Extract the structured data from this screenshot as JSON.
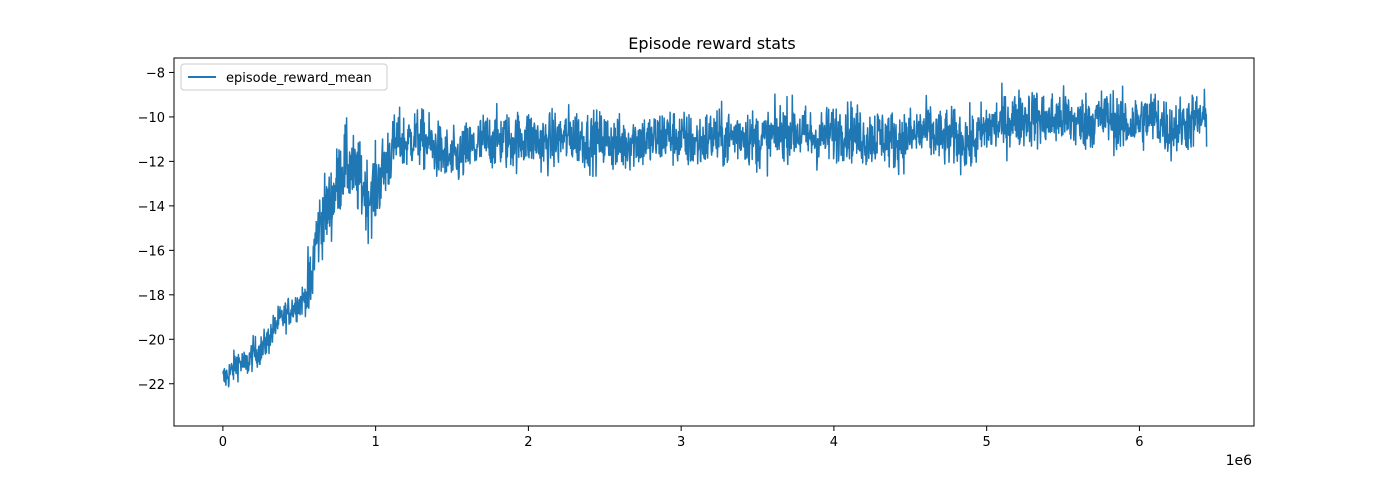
{
  "chart_data": {
    "type": "line",
    "title": "Episode reward stats",
    "xlabel": "",
    "ylabel": "",
    "x_offset_label": "1e6",
    "xlim": [
      -0.32,
      6.75
    ],
    "ylim": [
      -23.9,
      -7.35
    ],
    "x_ticks": [
      0,
      1,
      2,
      3,
      4,
      5,
      6
    ],
    "x_tick_labels": [
      "0",
      "1",
      "2",
      "3",
      "4",
      "5",
      "6"
    ],
    "y_ticks": [
      -22,
      -20,
      -18,
      -16,
      -14,
      -12,
      -10,
      -8
    ],
    "y_tick_labels": [
      "−22",
      "−20",
      "−18",
      "−16",
      "−14",
      "−12",
      "−10",
      "−8"
    ],
    "grid": false,
    "legend_position": "top-left",
    "series": [
      {
        "name": "episode_reward_mean",
        "color": "#1f77b4",
        "x": [
          0.0,
          0.05,
          0.1,
          0.15,
          0.2,
          0.25,
          0.3,
          0.35,
          0.4,
          0.45,
          0.5,
          0.55,
          0.58,
          0.6,
          0.65,
          0.7,
          0.75,
          0.8,
          0.85,
          0.9,
          0.95,
          1.0,
          1.05,
          1.1,
          1.15,
          1.2,
          1.25,
          1.3,
          1.35,
          1.4,
          1.45,
          1.5,
          1.55,
          1.6,
          1.65,
          1.7,
          1.8,
          1.9,
          2.0,
          2.1,
          2.2,
          2.3,
          2.4,
          2.5,
          2.6,
          2.7,
          2.8,
          2.9,
          3.0,
          3.1,
          3.2,
          3.3,
          3.4,
          3.5,
          3.6,
          3.7,
          3.8,
          3.9,
          4.0,
          4.1,
          4.2,
          4.3,
          4.4,
          4.5,
          4.6,
          4.7,
          4.8,
          4.9,
          5.0,
          5.1,
          5.2,
          5.3,
          5.4,
          5.5,
          5.6,
          5.7,
          5.8,
          5.9,
          6.0,
          6.1,
          6.2,
          6.3,
          6.4,
          6.44
        ],
        "values": [
          -21.8,
          -21.5,
          -21.0,
          -21.2,
          -20.6,
          -20.5,
          -20.0,
          -19.3,
          -19.0,
          -18.6,
          -18.4,
          -18.0,
          -17.6,
          -15.8,
          -14.5,
          -14.0,
          -13.0,
          -12.0,
          -12.5,
          -12.9,
          -13.6,
          -13.2,
          -12.4,
          -11.5,
          -11.0,
          -11.2,
          -10.9,
          -11.0,
          -11.2,
          -11.5,
          -11.7,
          -12.0,
          -11.8,
          -11.5,
          -11.4,
          -11.1,
          -11.0,
          -11.1,
          -10.9,
          -11.2,
          -11.0,
          -10.8,
          -11.1,
          -11.0,
          -11.3,
          -11.0,
          -11.1,
          -10.8,
          -11.0,
          -11.2,
          -10.9,
          -11.0,
          -10.7,
          -11.1,
          -10.9,
          -10.5,
          -10.8,
          -11.0,
          -10.7,
          -10.6,
          -11.0,
          -10.8,
          -11.1,
          -10.9,
          -10.6,
          -11.0,
          -10.9,
          -11.2,
          -10.5,
          -10.3,
          -10.1,
          -10.0,
          -10.2,
          -10.0,
          -10.3,
          -10.1,
          -10.0,
          -10.4,
          -10.2,
          -10.0,
          -10.6,
          -10.3,
          -10.1,
          -10.2
        ]
      }
    ]
  }
}
